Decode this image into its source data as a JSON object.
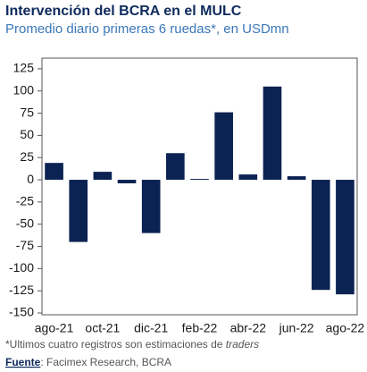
{
  "chart_data": {
    "type": "bar",
    "title": "Intervención del BCRA en el MULC",
    "subtitle": "Promedio diario primeras 6 ruedas*, en USDmn",
    "categories": [
      "ago-21",
      null,
      "oct-21",
      null,
      "dic-21",
      null,
      "feb-22",
      null,
      "abr-22",
      null,
      "jun-22",
      null,
      "ago-22"
    ],
    "values": [
      19,
      -70,
      9,
      -4,
      -60,
      30,
      1,
      76,
      6,
      105,
      4,
      -124,
      -129
    ],
    "color": "#0b2352",
    "ylim": [
      -152,
      137
    ],
    "yticks": [
      -150,
      -125,
      -100,
      -75,
      -50,
      -25,
      0,
      25,
      50,
      75,
      100,
      125
    ],
    "grid": false,
    "note": {
      "text": "*Ultimos cuatro registros son estimaciones de ",
      "emphasis": "traders"
    },
    "source": {
      "label": "Fuente",
      "text": ": Facimex Research, BCRA"
    }
  }
}
